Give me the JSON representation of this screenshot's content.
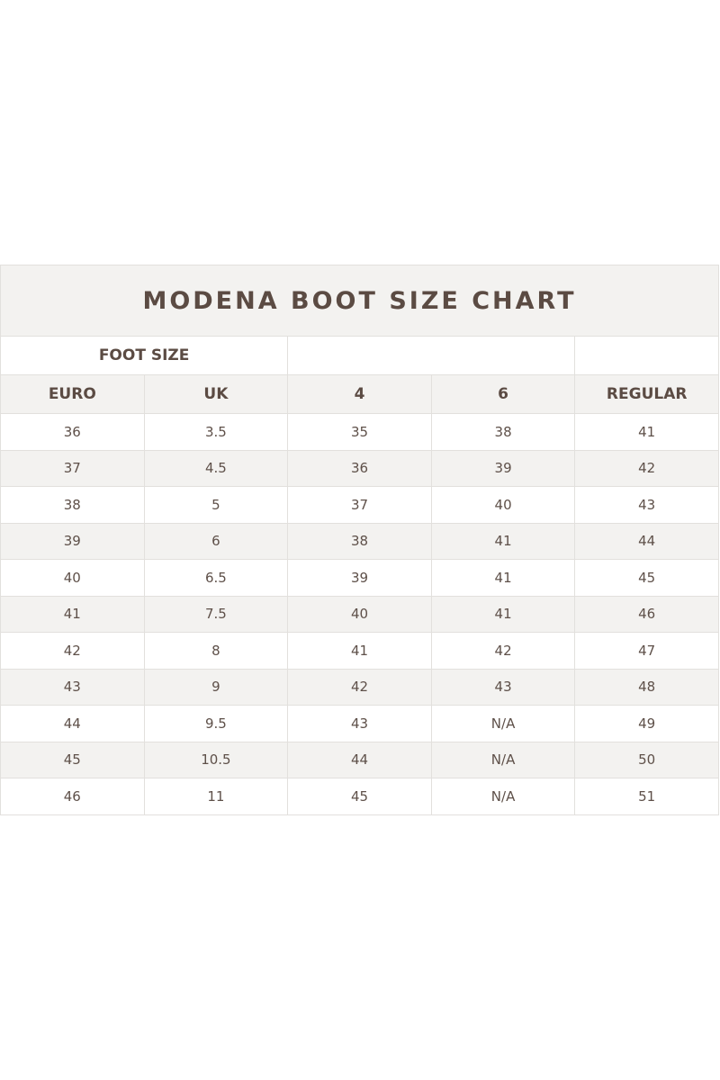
{
  "title": "MODENA BOOT SIZE CHART",
  "group_header": "FOOT SIZE",
  "columns": [
    "EURO",
    "UK",
    "4",
    "6",
    "REGULAR"
  ],
  "rows": [
    [
      "36",
      "3.5",
      "35",
      "38",
      "41"
    ],
    [
      "37",
      "4.5",
      "36",
      "39",
      "42"
    ],
    [
      "38",
      "5",
      "37",
      "40",
      "43"
    ],
    [
      "39",
      "6",
      "38",
      "41",
      "44"
    ],
    [
      "40",
      "6.5",
      "39",
      "41",
      "45"
    ],
    [
      "41",
      "7.5",
      "40",
      "41",
      "46"
    ],
    [
      "42",
      "8",
      "41",
      "42",
      "47"
    ],
    [
      "43",
      "9",
      "42",
      "43",
      "48"
    ],
    [
      "44",
      "9.5",
      "43",
      "N/A",
      "49"
    ],
    [
      "45",
      "10.5",
      "44",
      "N/A",
      "50"
    ],
    [
      "46",
      "11",
      "45",
      "N/A",
      "51"
    ]
  ],
  "colors": {
    "text": "#5b4b43",
    "stripe": "#f3f2f0",
    "border": "#e2e0dd"
  }
}
